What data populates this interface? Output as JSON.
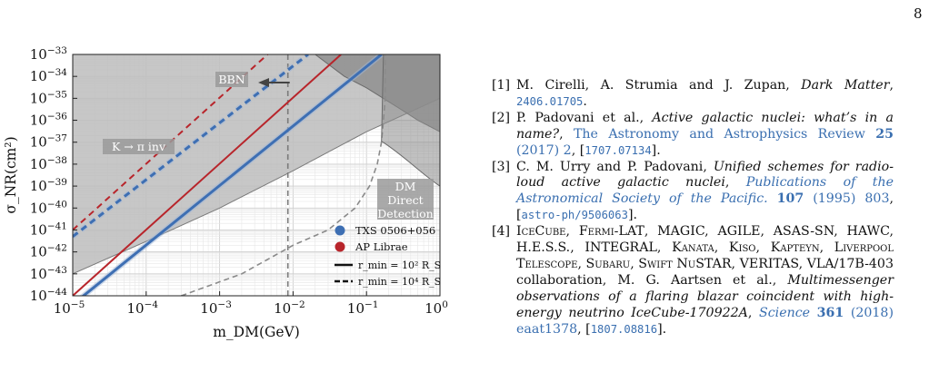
{
  "page_number": "8",
  "figure": {
    "chart_data": {
      "type": "line",
      "xlabel": "m_DM(GeV)",
      "ylabel": "σ_NR(cm²)",
      "x_scale": "log",
      "y_scale": "log",
      "xlim": [
        1e-05,
        1
      ],
      "ylim": [
        1e-44,
        1e-33
      ],
      "x_ticks": [
        "10−5",
        "10−4",
        "10−3",
        "10−2",
        "10−1",
        "100"
      ],
      "y_ticks": [
        "10−33",
        "10−34",
        "10−35",
        "10−36",
        "10−37",
        "10−38",
        "10−39",
        "10−40",
        "10−41",
        "10−42",
        "10−43",
        "10−44"
      ],
      "grid": true,
      "legend_position": "lower-right",
      "region_labels": {
        "bbn": "BBN",
        "kaon": "K → π inv",
        "dm_line1": "DM",
        "dm_line2": "Direct",
        "dm_line3": "Detection"
      },
      "legend": {
        "txs": "TXS 0506+056",
        "ap": "AP Librae",
        "solid": "r_min = 10² R_S",
        "dashed": "r_min = 10⁴ R_S"
      },
      "colors": {
        "txs": "#3e6fb3",
        "ap": "#b8252b",
        "excluded_light": "#bdbdbd",
        "excluded_dark": "#8c8c8c"
      },
      "series": [
        {
          "name": "TXS 0506+056",
          "style": "solid",
          "x": [
            1e-05,
            0.16
          ],
          "y": [
            4e-45,
            1e-33
          ]
        },
        {
          "name": "TXS 0506+056",
          "style": "dashed",
          "x": [
            1e-05,
            0.016
          ],
          "y": [
            5e-42,
            1e-33
          ]
        },
        {
          "name": "AP Librae",
          "style": "solid",
          "x": [
            1e-05,
            0.045
          ],
          "y": [
            1e-44,
            1e-33
          ]
        },
        {
          "name": "AP Librae",
          "style": "dashed",
          "x": [
            1e-05,
            0.0045
          ],
          "y": [
            1e-41,
            1e-33
          ]
        }
      ],
      "bbn_bound_x": 0.0085,
      "direct_detection_curve": {
        "x": [
          0.0003,
          0.002,
          0.01,
          0.03,
          0.07,
          0.11,
          0.14,
          0.16,
          0.17,
          0.18,
          0.18
        ],
        "y": [
          1e-44,
          1e-43,
          2e-42,
          1e-41,
          1e-40,
          1e-39,
          1e-38,
          1e-37,
          1e-36,
          1e-35,
          1e-33
        ]
      },
      "kaon_region_upper": {
        "x": [
          1e-05,
          0.0001,
          0.001,
          0.01,
          0.1,
          1
        ],
        "y": [
          1e-43,
          3e-42,
          1e-40,
          5e-39,
          3e-37,
          1e-35
        ]
      },
      "top_right_region": {
        "x": [
          0.02,
          0.05,
          0.1,
          0.3,
          0.5,
          1,
          1,
          0.5,
          0.1,
          0.03
        ],
        "y": [
          1e-33,
          1e-34,
          3e-35,
          3e-36,
          1e-36,
          3e-37,
          1e-33,
          1e-33,
          1e-33,
          1e-33
        ]
      }
    }
  },
  "references": [
    {
      "num": "[1]",
      "parts": [
        {
          "t": "M. Cirelli, A. Strumia and J. Zupan, "
        },
        {
          "t": "Dark Matter",
          "c": "it"
        },
        {
          "t": ", "
        },
        {
          "t": "2406.01705",
          "c": "tt"
        },
        {
          "t": "."
        }
      ]
    },
    {
      "num": "[2]",
      "parts": [
        {
          "t": "P. Padovani et al., "
        },
        {
          "t": "Active galactic nuclei: what’s in a name?",
          "c": "it"
        },
        {
          "t": ", "
        },
        {
          "t": "The Astronomy and Astrophysics Review",
          "c": "link"
        },
        {
          "t": " "
        },
        {
          "t": "25",
          "c": "link bf"
        },
        {
          "t": " (2017) 2",
          "c": "link"
        },
        {
          "t": ", ["
        },
        {
          "t": "1707.07134",
          "c": "tt"
        },
        {
          "t": "]."
        }
      ]
    },
    {
      "num": "[3]",
      "parts": [
        {
          "t": "C. M. Urry and P. Padovani, "
        },
        {
          "t": "Unified schemes for radio-loud active galactic nuclei",
          "c": "it"
        },
        {
          "t": ", "
        },
        {
          "t": "Publications of the Astronomical Society of the Pacific.",
          "c": "link it"
        },
        {
          "t": " "
        },
        {
          "t": "107",
          "c": "link bf"
        },
        {
          "t": " (1995) 803",
          "c": "link"
        },
        {
          "t": ", ["
        },
        {
          "t": "astro-ph/9506063",
          "c": "tt"
        },
        {
          "t": "]."
        }
      ]
    },
    {
      "num": "[4]",
      "parts": [
        {
          "t": "IceCube",
          "c": "sc"
        },
        {
          "t": ", "
        },
        {
          "t": "Fermi-LAT",
          "c": "sc"
        },
        {
          "t": ", MAGIC, AGILE, ASAS-SN, HAWC, H.E.S.S., INTEGRAL, "
        },
        {
          "t": "Kanata",
          "c": "sc"
        },
        {
          "t": ", "
        },
        {
          "t": "Kiso",
          "c": "sc"
        },
        {
          "t": ", "
        },
        {
          "t": "Kapteyn",
          "c": "sc"
        },
        {
          "t": ", "
        },
        {
          "t": "Liverpool Telescope",
          "c": "sc"
        },
        {
          "t": ", "
        },
        {
          "t": "Subaru",
          "c": "sc"
        },
        {
          "t": ", "
        },
        {
          "t": "Swift NuSTAR",
          "c": "sc"
        },
        {
          "t": ", VERITAS, VLA/17B-403 collaboration, M. G. Aartsen et al., "
        },
        {
          "t": "Multimessenger observations of a flaring blazar coincident with high-energy neutrino IceCube-170922A",
          "c": "it"
        },
        {
          "t": ", "
        },
        {
          "t": "Science",
          "c": "link it"
        },
        {
          "t": " "
        },
        {
          "t": "361",
          "c": "link bf"
        },
        {
          "t": " (2018) eaat1378",
          "c": "link"
        },
        {
          "t": ", ["
        },
        {
          "t": "1807.08816",
          "c": "tt"
        },
        {
          "t": "]."
        }
      ]
    }
  ]
}
